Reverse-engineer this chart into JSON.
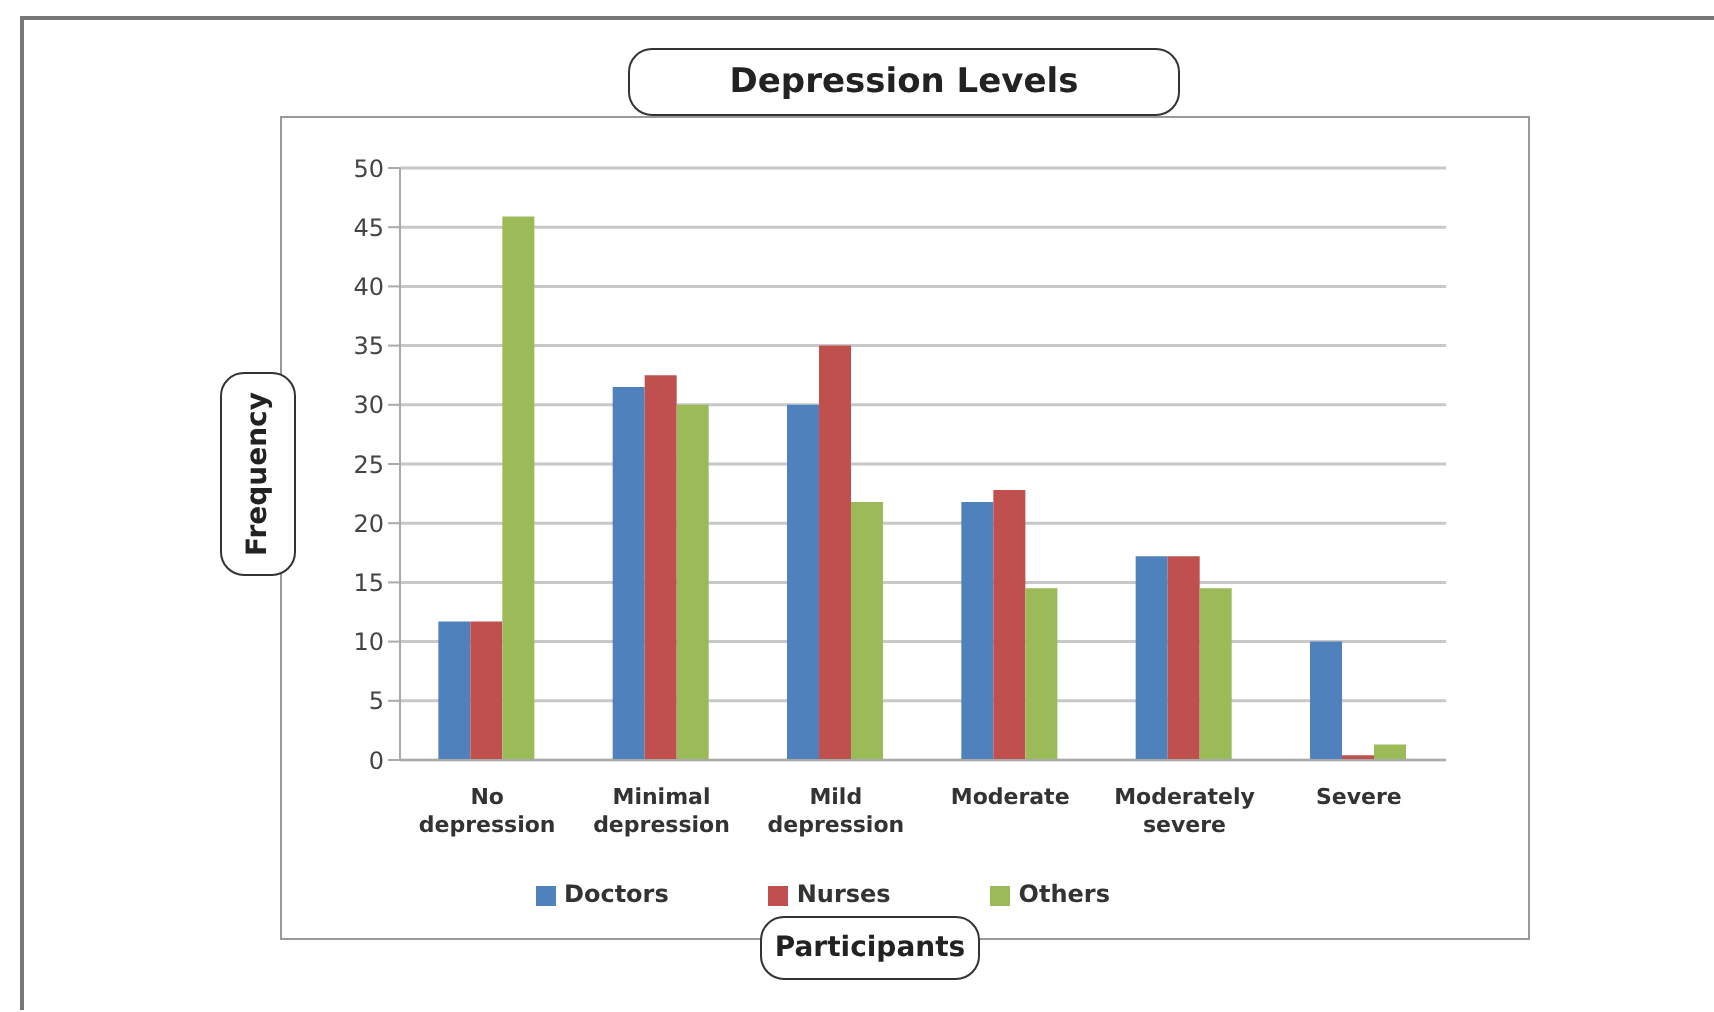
{
  "chart_data": {
    "type": "bar",
    "title": "Depression Levels",
    "xlabel": "Participants",
    "ylabel": "Frequency",
    "categories": [
      "No depression",
      "Minimal depression",
      "Mild depression",
      "Moderate",
      "Moderately severe",
      "Severe"
    ],
    "series": [
      {
        "name": "Doctors",
        "color": "#4f81bd",
        "values": [
          11.7,
          31.5,
          30,
          21.8,
          17.2,
          10
        ]
      },
      {
        "name": "Nurses",
        "color": "#c0504d",
        "values": [
          11.7,
          32.5,
          35,
          22.8,
          17.2,
          0.4
        ]
      },
      {
        "name": "Others",
        "color": "#9bbb59",
        "values": [
          45.9,
          30,
          21.8,
          14.5,
          14.5,
          1.3
        ]
      }
    ],
    "ylim": [
      0,
      50
    ],
    "yticks": [
      0,
      5,
      10,
      15,
      20,
      25,
      30,
      35,
      40,
      45,
      50
    ],
    "grid": "y",
    "legend": "bottom"
  }
}
